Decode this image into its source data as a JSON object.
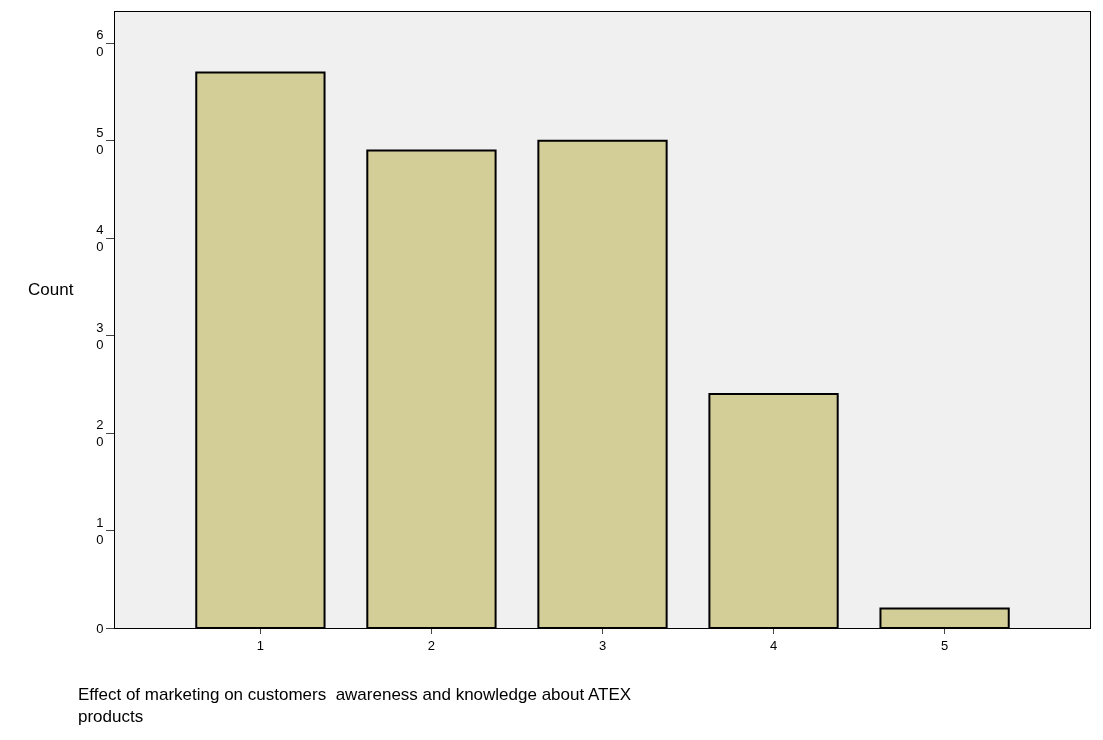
{
  "chart_data": {
    "type": "bar",
    "xlabel": "Effect of marketing on customers  awareness and knowledge about ATEX products",
    "ylabel": "Count",
    "categories": [
      "1",
      "2",
      "3",
      "4",
      "5"
    ],
    "values": [
      57,
      49,
      50,
      24,
      2
    ],
    "color": "#d3cd98",
    "ylim": [
      0,
      63.2
    ],
    "yticks": [
      0,
      10,
      20,
      30,
      40,
      50,
      60
    ],
    "grid": false
  }
}
